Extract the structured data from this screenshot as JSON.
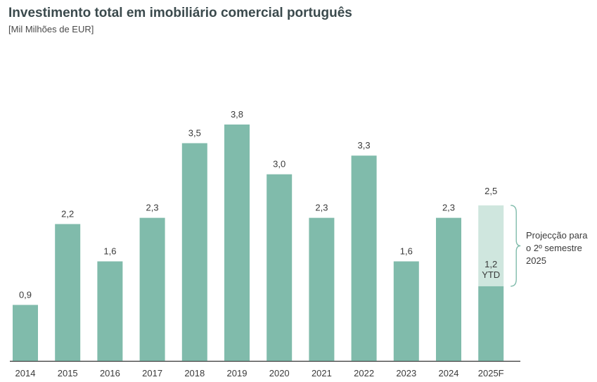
{
  "chart_data": {
    "type": "bar",
    "title": "Investimento total em imobiliário comercial português",
    "subtitle": "[Mil Milhões de EUR]",
    "categories": [
      "2014",
      "2015",
      "2016",
      "2017",
      "2018",
      "2019",
      "2020",
      "2021",
      "2022",
      "2023",
      "2024",
      "2025F"
    ],
    "values": [
      0.9,
      2.2,
      1.6,
      2.3,
      3.5,
      3.8,
      3.0,
      2.3,
      3.3,
      1.6,
      2.3,
      1.2
    ],
    "value_labels": [
      "0,9",
      "2,2",
      "1,6",
      "2,3",
      "3,5",
      "3,8",
      "3,0",
      "2,3",
      "3,3",
      "1,6",
      "2,3",
      "1,2"
    ],
    "projection": {
      "category": "2025F",
      "total": 2.5,
      "total_label": "2,5",
      "ytd_value_label": "1,2",
      "ytd_label": "YTD",
      "annotation": [
        "Projecção para",
        "o 2º semestre",
        "2025"
      ]
    },
    "ylim": [
      0,
      3.8
    ],
    "grid": false,
    "colors": {
      "bar": "#80bbab",
      "projection": "#cfe6de",
      "brace": "#80bbab",
      "axis": "#333333"
    }
  }
}
